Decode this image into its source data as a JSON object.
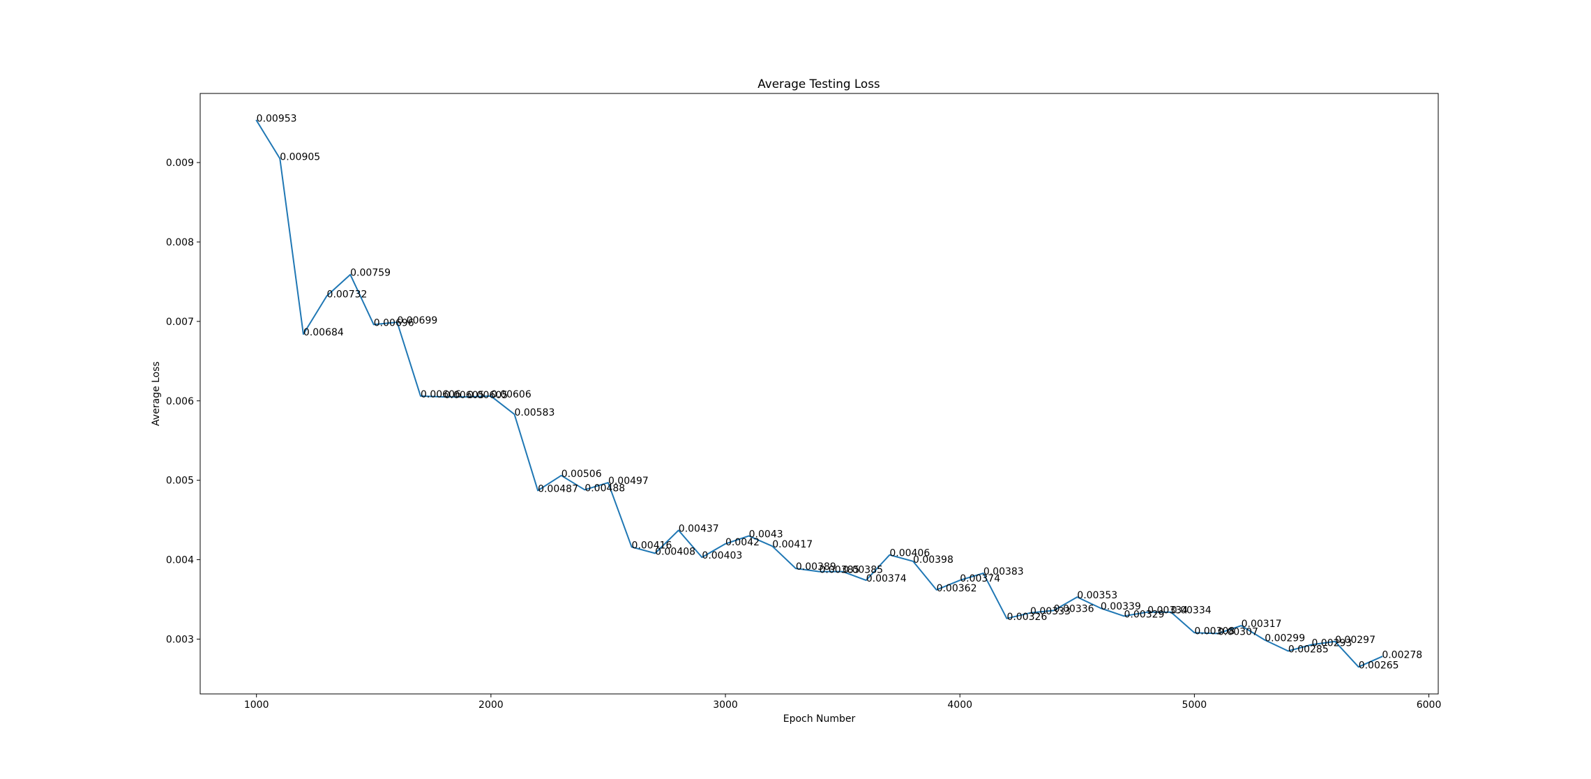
{
  "chart_data": {
    "type": "line",
    "title": "Average Testing Loss",
    "xlabel": "Epoch Number",
    "ylabel": "Average Loss",
    "xlim": [
      760,
      6040
    ],
    "ylim": [
      0.00231,
      0.00987
    ],
    "grid": false,
    "x_ticks": [
      {
        "value": 1000,
        "label": "1000"
      },
      {
        "value": 2000,
        "label": "2000"
      },
      {
        "value": 3000,
        "label": "3000"
      },
      {
        "value": 4000,
        "label": "4000"
      },
      {
        "value": 5000,
        "label": "5000"
      },
      {
        "value": 6000,
        "label": "6000"
      }
    ],
    "y_ticks": [
      {
        "value": 0.003,
        "label": "0.003"
      },
      {
        "value": 0.004,
        "label": "0.004"
      },
      {
        "value": 0.005,
        "label": "0.005"
      },
      {
        "value": 0.006,
        "label": "0.006"
      },
      {
        "value": 0.007,
        "label": "0.007"
      },
      {
        "value": 0.008,
        "label": "0.008"
      },
      {
        "value": 0.009,
        "label": "0.009"
      }
    ],
    "series": [
      {
        "color": "#1f77b4",
        "points": [
          {
            "x": 1000,
            "y": 0.00953,
            "label": "0.00953"
          },
          {
            "x": 1100,
            "y": 0.00905,
            "label": "0.00905"
          },
          {
            "x": 1200,
            "y": 0.00684,
            "label": "0.00684"
          },
          {
            "x": 1300,
            "y": 0.00732,
            "label": "0.00732"
          },
          {
            "x": 1400,
            "y": 0.00759,
            "label": "0.00759"
          },
          {
            "x": 1500,
            "y": 0.00696,
            "label": "0.00696"
          },
          {
            "x": 1600,
            "y": 0.00699,
            "label": "0.00699"
          },
          {
            "x": 1700,
            "y": 0.00606,
            "label": "0.00606"
          },
          {
            "x": 1800,
            "y": 0.00605,
            "label": "0.00605"
          },
          {
            "x": 1900,
            "y": 0.00605,
            "label": "0.00605"
          },
          {
            "x": 2000,
            "y": 0.00606,
            "label": "0.00606"
          },
          {
            "x": 2100,
            "y": 0.00583,
            "label": "0.00583"
          },
          {
            "x": 2200,
            "y": 0.00487,
            "label": "0.00487"
          },
          {
            "x": 2300,
            "y": 0.00506,
            "label": "0.00506"
          },
          {
            "x": 2400,
            "y": 0.00488,
            "label": "0.00488"
          },
          {
            "x": 2500,
            "y": 0.00497,
            "label": "0.00497"
          },
          {
            "x": 2600,
            "y": 0.00416,
            "label": "0.00416"
          },
          {
            "x": 2700,
            "y": 0.00408,
            "label": "0.00408"
          },
          {
            "x": 2800,
            "y": 0.00437,
            "label": "0.00437"
          },
          {
            "x": 2900,
            "y": 0.00403,
            "label": "0.00403"
          },
          {
            "x": 3000,
            "y": 0.0042,
            "label": "0.0042"
          },
          {
            "x": 3100,
            "y": 0.0043,
            "label": "0.0043"
          },
          {
            "x": 3200,
            "y": 0.00417,
            "label": "0.00417"
          },
          {
            "x": 3300,
            "y": 0.00389,
            "label": "0.00389"
          },
          {
            "x": 3400,
            "y": 0.00385,
            "label": "0.00385"
          },
          {
            "x": 3500,
            "y": 0.00385,
            "label": "0.00385"
          },
          {
            "x": 3600,
            "y": 0.00374,
            "label": "0.00374"
          },
          {
            "x": 3700,
            "y": 0.00406,
            "label": "0.00406"
          },
          {
            "x": 3800,
            "y": 0.00398,
            "label": "0.00398"
          },
          {
            "x": 3900,
            "y": 0.00362,
            "label": "0.00362"
          },
          {
            "x": 4000,
            "y": 0.00374,
            "label": "0.00374"
          },
          {
            "x": 4100,
            "y": 0.00383,
            "label": "0.00383"
          },
          {
            "x": 4200,
            "y": 0.00326,
            "label": "0.00326"
          },
          {
            "x": 4300,
            "y": 0.00333,
            "label": "0.00333"
          },
          {
            "x": 4400,
            "y": 0.00336,
            "label": "0.00336"
          },
          {
            "x": 4500,
            "y": 0.00353,
            "label": "0.00353"
          },
          {
            "x": 4600,
            "y": 0.00339,
            "label": "0.00339"
          },
          {
            "x": 4700,
            "y": 0.00329,
            "label": "0.00329"
          },
          {
            "x": 4800,
            "y": 0.00334,
            "label": "0.00334"
          },
          {
            "x": 4900,
            "y": 0.00334,
            "label": "0.00334"
          },
          {
            "x": 5000,
            "y": 0.00308,
            "label": "0.00308"
          },
          {
            "x": 5100,
            "y": 0.00307,
            "label": "0.00307"
          },
          {
            "x": 5200,
            "y": 0.00317,
            "label": "0.00317"
          },
          {
            "x": 5300,
            "y": 0.00299,
            "label": "0.00299"
          },
          {
            "x": 5400,
            "y": 0.00285,
            "label": "0.00285"
          },
          {
            "x": 5500,
            "y": 0.00293,
            "label": "0.00293"
          },
          {
            "x": 5600,
            "y": 0.00297,
            "label": "0.00297"
          },
          {
            "x": 5700,
            "y": 0.00265,
            "label": "0.00265"
          },
          {
            "x": 5800,
            "y": 0.00278,
            "label": "0.00278"
          }
        ]
      }
    ]
  }
}
